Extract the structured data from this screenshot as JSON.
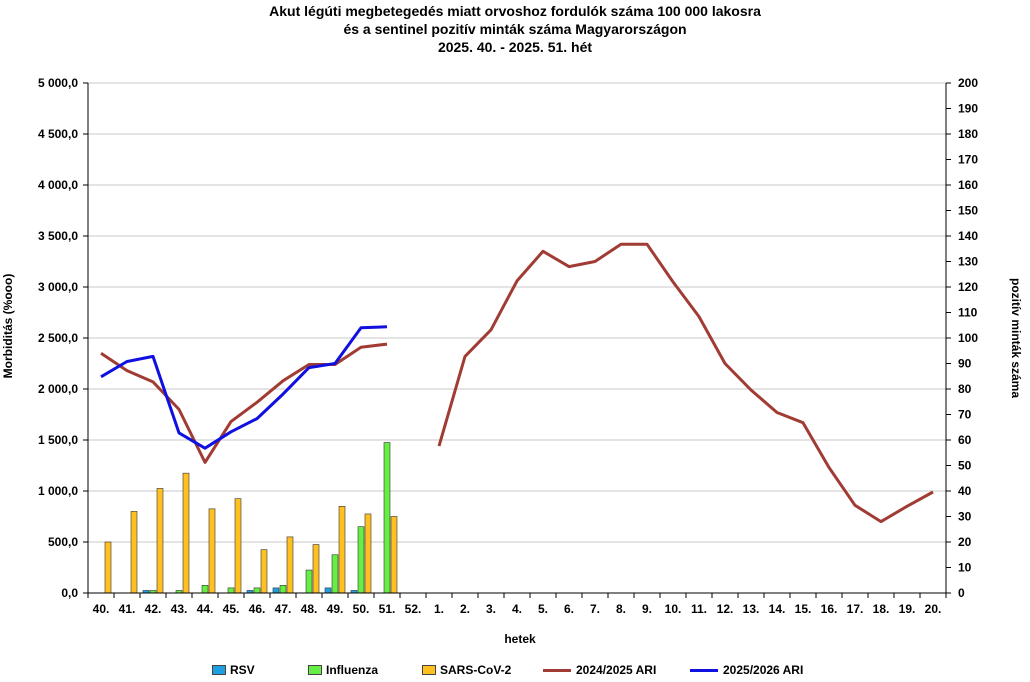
{
  "title_lines": [
    "Akut légúti megbetegedés miatt orvoshoz fordulók száma 100 000 lakosra",
    "és a sentinel pozitív minták száma Magyarországon",
    "2025. 40. - 2025. 51. hét"
  ],
  "chart_data": {
    "type": "bar+line",
    "xlabel": "hetek",
    "ylabel_left": "Morbiditás (%ooo)",
    "ylabel_right": "pozitív minták száma",
    "ylim_left": [
      0,
      5000
    ],
    "ylim_right": [
      0,
      200
    ],
    "grid": true,
    "legend_position": "bottom",
    "categories": [
      "40.",
      "41.",
      "42.",
      "43.",
      "44.",
      "45.",
      "46.",
      "47.",
      "48.",
      "49.",
      "50.",
      "51.",
      "52.",
      "1.",
      "2.",
      "3.",
      "4.",
      "5.",
      "6.",
      "7.",
      "8.",
      "9.",
      "10.",
      "11.",
      "12.",
      "13.",
      "14.",
      "15.",
      "16.",
      "17.",
      "18.",
      "19.",
      "20."
    ],
    "left_ticks": [
      "0,0",
      "500,0",
      "1 000,0",
      "1 500,0",
      "2 000,0",
      "2 500,0",
      "3 000,0",
      "3 500,0",
      "4 000,0",
      "4 500,0",
      "5 000,0"
    ],
    "right_ticks": [
      "0",
      "10",
      "20",
      "30",
      "40",
      "50",
      "60",
      "70",
      "80",
      "90",
      "100",
      "110",
      "120",
      "130",
      "140",
      "150",
      "160",
      "170",
      "180",
      "190",
      "200"
    ],
    "bar_series": [
      {
        "name": "RSV",
        "color": "#1f9fe0",
        "values": [
          0,
          0,
          1,
          0,
          0,
          0,
          1,
          2,
          0,
          2,
          1,
          0,
          null,
          null,
          null,
          null,
          null,
          null,
          null,
          null,
          null,
          null,
          null,
          null,
          null,
          null,
          null,
          null,
          null,
          null,
          null,
          null,
          null
        ]
      },
      {
        "name": "Influenza",
        "color": "#66ee44",
        "values": [
          0,
          0,
          1,
          1,
          3,
          2,
          2,
          3,
          9,
          15,
          26,
          59,
          null,
          null,
          null,
          null,
          null,
          null,
          null,
          null,
          null,
          null,
          null,
          null,
          null,
          null,
          null,
          null,
          null,
          null,
          null,
          null,
          null
        ]
      },
      {
        "name": "SARS-CoV-2",
        "color": "#ffc020",
        "values": [
          20,
          32,
          41,
          47,
          33,
          37,
          17,
          22,
          19,
          34,
          31,
          30,
          null,
          null,
          null,
          null,
          null,
          null,
          null,
          null,
          null,
          null,
          null,
          null,
          null,
          null,
          null,
          null,
          null,
          null,
          null,
          null,
          null
        ]
      }
    ],
    "line_series": [
      {
        "name": "2024/2025 ARI",
        "color": "#a03c34",
        "values": [
          2350,
          2180,
          2070,
          1800,
          1280,
          1680,
          1870,
          2080,
          2240,
          2240,
          2410,
          2440,
          null,
          1440,
          2320,
          2580,
          3060,
          3350,
          3200,
          3250,
          3420,
          3420,
          3050,
          2710,
          2250,
          1990,
          1770,
          1670,
          1230,
          860,
          700,
          850,
          990
        ]
      },
      {
        "name": "2025/2026 ARI",
        "color": "#1010e0",
        "values": [
          2120,
          2270,
          2320,
          1570,
          1420,
          1580,
          1710,
          1950,
          2210,
          2250,
          2600,
          2610,
          null,
          null,
          null,
          null,
          null,
          null,
          null,
          null,
          null,
          null,
          null,
          null,
          null,
          null,
          null,
          null,
          null,
          null,
          null,
          null,
          null
        ]
      }
    ]
  }
}
